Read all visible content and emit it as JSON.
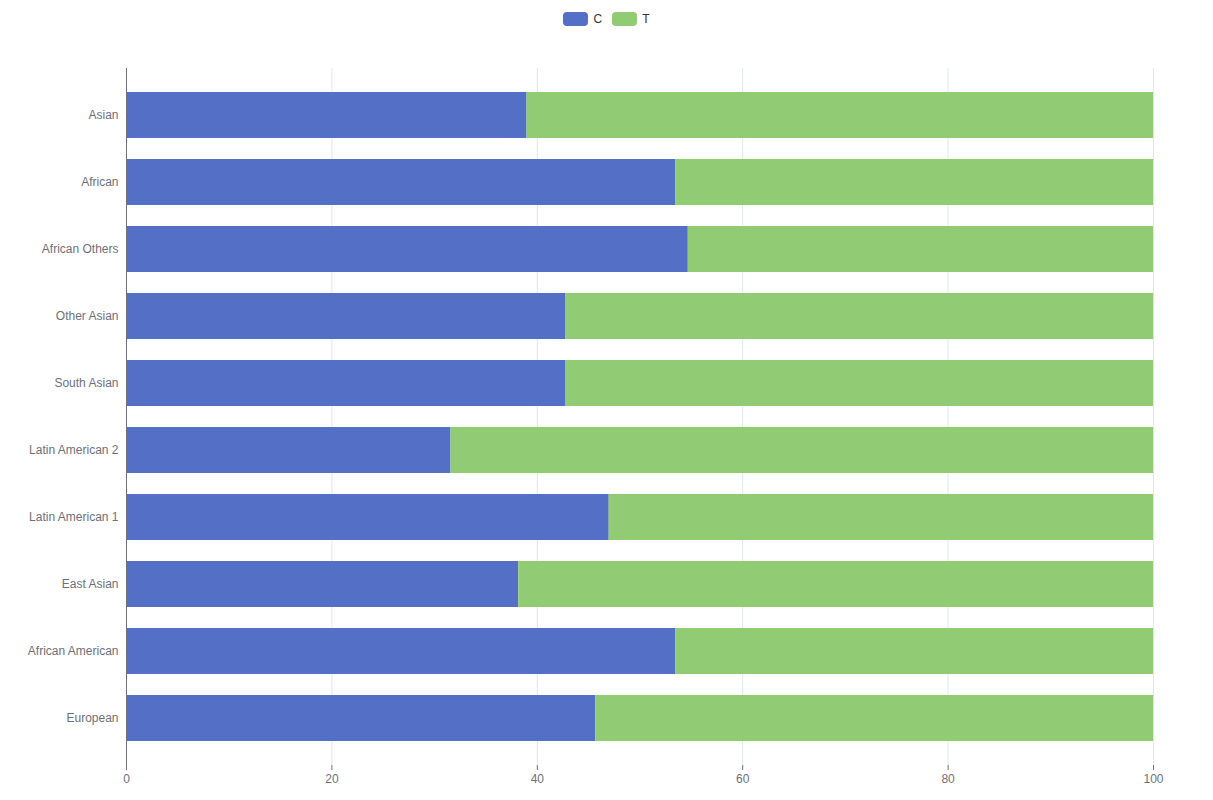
{
  "chart_data": {
    "type": "bar",
    "orientation": "horizontal",
    "stacked": true,
    "categories": [
      "Asian",
      "African",
      "African Others",
      "Other Asian",
      "South Asian",
      "Latin American 2",
      "Latin American 1",
      "East Asian",
      "African American",
      "European"
    ],
    "series": [
      {
        "name": "C",
        "color": "#5470c6",
        "values": [
          39.0,
          53.5,
          54.7,
          42.8,
          42.8,
          31.6,
          47.0,
          38.2,
          53.5,
          45.7
        ]
      },
      {
        "name": "T",
        "color": "#91cc75",
        "values": [
          61.0,
          46.5,
          45.3,
          57.2,
          57.2,
          68.4,
          53.0,
          61.8,
          46.5,
          54.3
        ]
      }
    ],
    "xlim": [
      0,
      100
    ],
    "xticks": [
      0,
      20,
      40,
      60,
      80,
      100
    ],
    "grid": true,
    "legend": "top"
  }
}
